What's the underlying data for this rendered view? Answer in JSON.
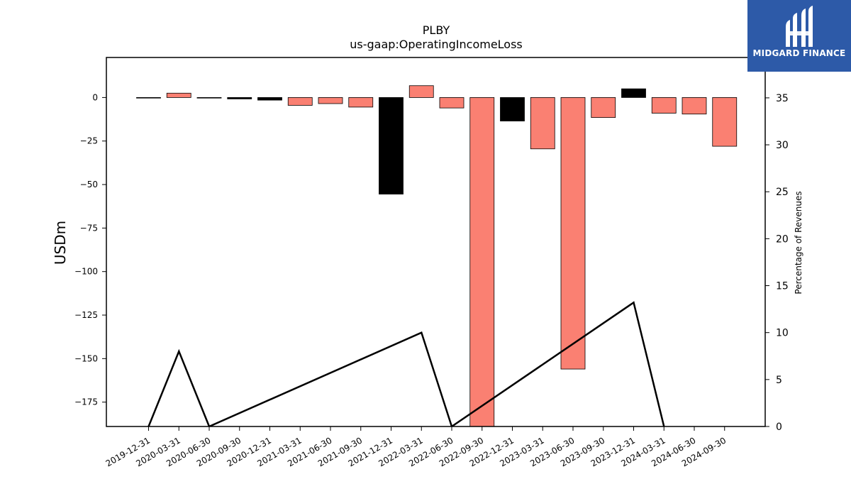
{
  "chart_data": {
    "type": "bar",
    "title": "PLBY",
    "subtitle": "us-gaap:OperatingIncomeLoss",
    "ylabel": "USDm",
    "ylabel_right": "Percentage of Revenues",
    "ylim": [
      -189,
      23
    ],
    "ylim_right": [
      0,
      39.3
    ],
    "yticks": [
      0,
      -25,
      -50,
      -75,
      -100,
      -125,
      -150,
      -175
    ],
    "yticks_right": [
      0,
      5,
      10,
      15,
      20,
      25,
      30,
      35
    ],
    "categories": [
      "2019-12-31",
      "2020-03-31",
      "2020-06-30",
      "2020-09-30",
      "2020-12-31",
      "2021-03-31",
      "2021-06-30",
      "2021-09-30",
      "2021-12-31",
      "2022-03-31",
      "2022-06-30",
      "2022-09-30",
      "2022-12-31",
      "2023-03-31",
      "2023-06-30",
      "2023-09-30",
      "2023-12-31",
      "2024-03-31",
      "2024-06-30",
      "2024-09-30"
    ],
    "values": [
      -0.2,
      2.5,
      -0.3,
      -0.8,
      -1.5,
      -4.5,
      -3.5,
      -5.5,
      -55.5,
      6.8,
      -6,
      -190,
      -13.5,
      -29.5,
      -156,
      -11.5,
      5,
      -9,
      -9.5,
      -28
    ],
    "bar_colors": [
      "#fa8072",
      "#fa8072",
      "#fa8072",
      "#000000",
      "#000000",
      "#fa8072",
      "#fa8072",
      "#fa8072",
      "#000000",
      "#fa8072",
      "#fa8072",
      "#fa8072",
      "#000000",
      "#fa8072",
      "#fa8072",
      "#fa8072",
      "#000000",
      "#fa8072",
      "#fa8072",
      "#fa8072"
    ],
    "percentage_series": [
      {
        "x": "2019-12-31",
        "y": 0
      },
      {
        "x": "2020-03-31",
        "y": 8
      },
      {
        "x": "2020-06-30",
        "y": 0
      },
      {
        "x": "2022-03-31",
        "y": 10
      },
      {
        "x": "2022-06-30",
        "y": 0
      },
      {
        "x": "2023-12-31",
        "y": 13.2
      },
      {
        "x": "2024-03-31",
        "y": 0
      }
    ],
    "colors": {
      "positive_margin_bar": "#000000",
      "negative_bar": "#fa8072",
      "line": "#000000"
    }
  },
  "logo": {
    "text": "MIDGARD FINANCE",
    "background": "#2d5aa8"
  }
}
